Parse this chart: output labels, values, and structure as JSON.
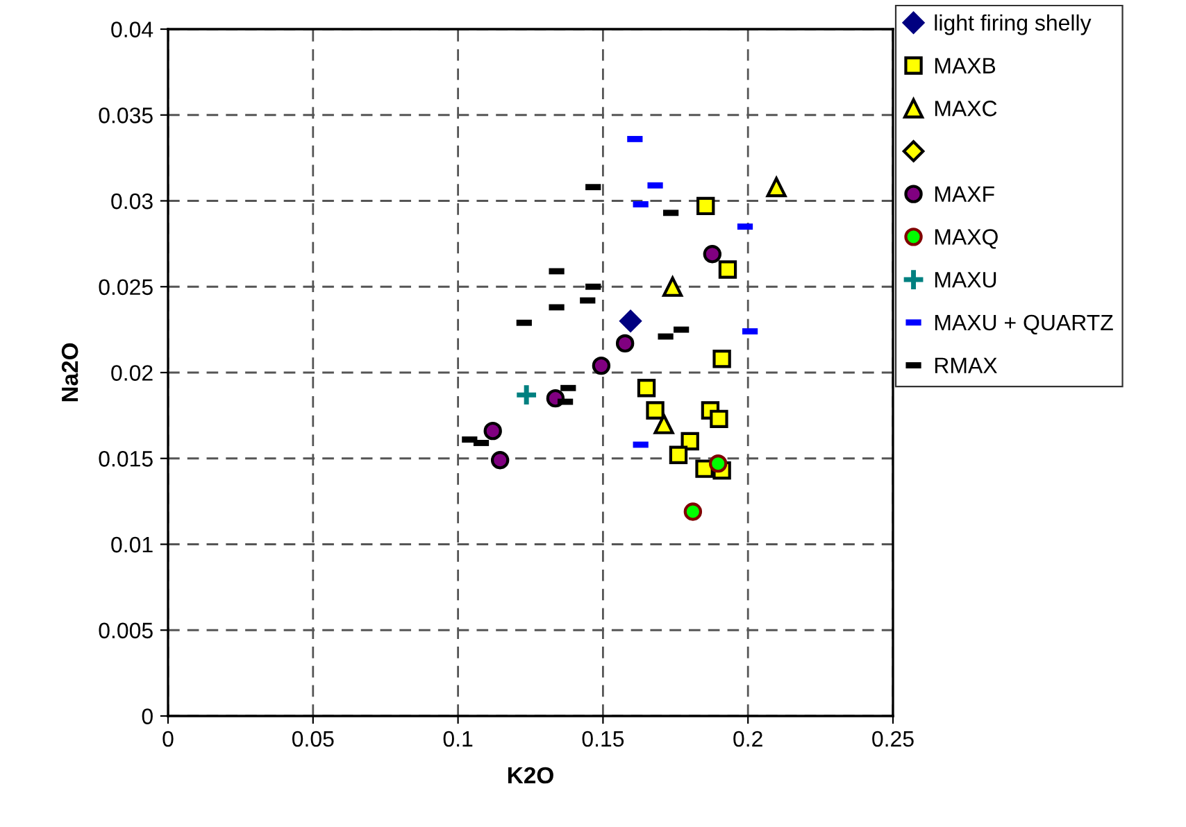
{
  "chart_data": {
    "type": "scatter",
    "xlabel": "K2O",
    "ylabel": "Na2O",
    "xlim": [
      0,
      0.25
    ],
    "xticks": [
      0,
      0.05,
      0.1,
      0.15,
      0.2,
      0.25
    ],
    "ylim": [
      0,
      0.04
    ],
    "yticks": [
      0,
      0.005,
      0.01,
      0.015,
      0.02,
      0.025,
      0.03,
      0.035,
      0.04
    ],
    "grid": true,
    "legend": "right",
    "series": [
      {
        "name": "light firing shelly",
        "color": "#000080",
        "marker": "diamond",
        "x": [
          0.1595
        ],
        "values": [
          0.023
        ]
      },
      {
        "name": "MAXB",
        "color": "#ffff00",
        "marker": "square",
        "x": [
          0.1854,
          0.193,
          0.191,
          0.165,
          0.168,
          0.187,
          0.19,
          0.18,
          0.176,
          0.185,
          0.191
        ],
        "values": [
          0.0297,
          0.026,
          0.0208,
          0.0191,
          0.0178,
          0.0178,
          0.0173,
          0.016,
          0.0152,
          0.0144,
          0.0143
        ]
      },
      {
        "name": "MAXC",
        "color": "#ffff00",
        "marker": "triangle",
        "x": [
          0.2098,
          0.174,
          0.171
        ],
        "values": [
          0.0308,
          0.025,
          0.017
        ]
      },
      {
        "color": "#ffff00",
        "marker": "diamond"
      },
      {
        "name": "MAXF",
        "color": "#800080",
        "marker": "circle",
        "x": [
          0.1877,
          0.1576,
          0.1494,
          0.1336,
          0.112,
          0.1145
        ],
        "values": [
          0.0269,
          0.0217,
          0.0204,
          0.0185,
          0.0166,
          0.0149
        ]
      },
      {
        "name": "MAXQ",
        "color": "#00ff00",
        "marker": "circle",
        "x": [
          0.1897,
          0.181
        ],
        "values": [
          0.0147,
          0.0119
        ]
      },
      {
        "name": "MAXU",
        "color": "#008080",
        "marker": "cross",
        "x": [
          0.1236
        ],
        "values": [
          0.0187
        ]
      },
      {
        "name": "MAXU + QUARTZ",
        "color": "#0000ff",
        "x": [
          0.161,
          0.168,
          0.163,
          0.199,
          0.2007,
          0.163
        ],
        "values": [
          0.0336,
          0.0309,
          0.0298,
          0.0285,
          0.0224,
          0.0158
        ]
      },
      {
        "name": "RMAX",
        "color": "#000000",
        "x": [
          0.1466,
          0.1734,
          0.134,
          0.1466,
          0.134,
          0.1447,
          0.1228,
          0.177,
          0.1716,
          0.138,
          0.137,
          0.104,
          0.108
        ],
        "values": [
          0.0308,
          0.0293,
          0.0259,
          0.025,
          0.0238,
          0.0242,
          0.0229,
          0.0225,
          0.0221,
          0.0191,
          0.0183,
          0.0161,
          0.0159
        ]
      }
    ]
  }
}
